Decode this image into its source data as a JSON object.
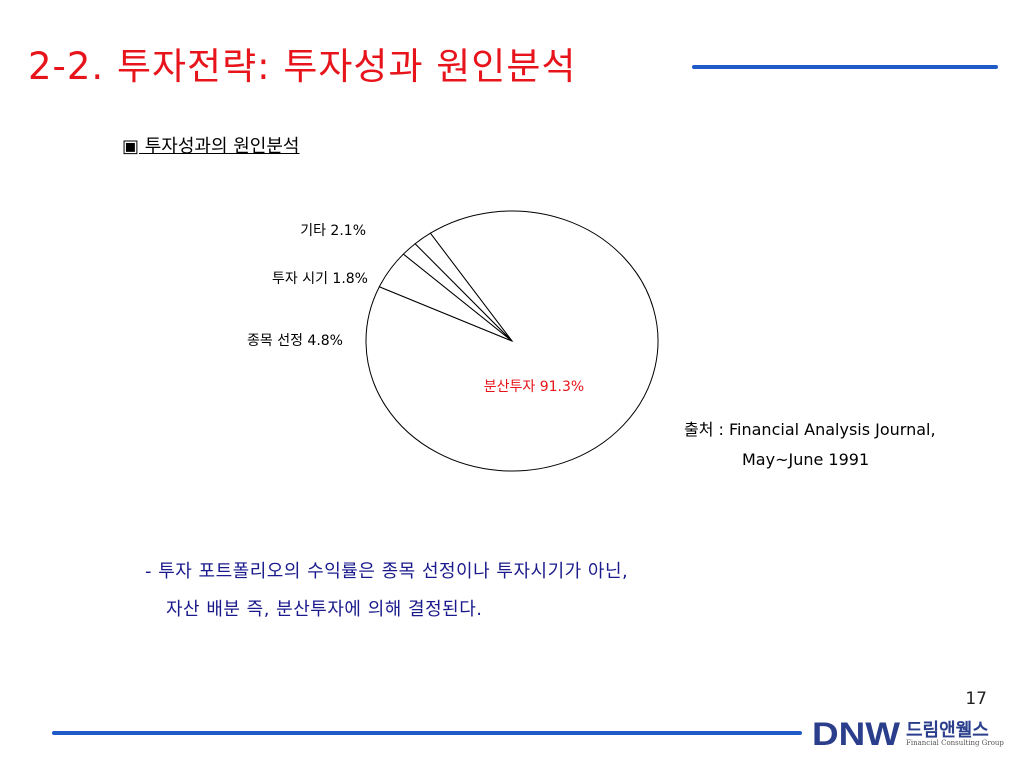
{
  "slide": {
    "title": "2-2. 투자전략: 투자성과 원인분석",
    "subtitle": "▣ 투자성과의 원인분석",
    "source_label": "출처 : Financial Analysis Journal,",
    "source_date": "May~June 1991",
    "bullet_line1": "- 투자 포트폴리오의 수익률은 종목 선정이나 투자시기가 아닌,",
    "bullet_line2": "자산 배분 즉, 분산투자에 의해 결정된다.",
    "page_number": "17",
    "logo_mark": "DNW",
    "logo_korean": "드림앤웰스",
    "logo_english": "Financial Consulting Group"
  },
  "colors": {
    "title": "#e8141b",
    "accent_rule": "#1f5bc6",
    "highlight_label": "#e8141b",
    "bullet_text": "#1a1a8c",
    "logo_blue": "#2a3e8c"
  },
  "chart_data": {
    "type": "pie",
    "slices": [
      {
        "label": "분산투자",
        "value": 91.3,
        "display": "분산투자 91.3%",
        "highlight": true
      },
      {
        "label": "종목 선정",
        "value": 4.8,
        "display": "종목 선정 4.8%"
      },
      {
        "label": "투자 시기",
        "value": 1.8,
        "display": "투자 시기 1.8%"
      },
      {
        "label": "기타",
        "value": 2.1,
        "display": "기타 2.1%"
      }
    ]
  }
}
